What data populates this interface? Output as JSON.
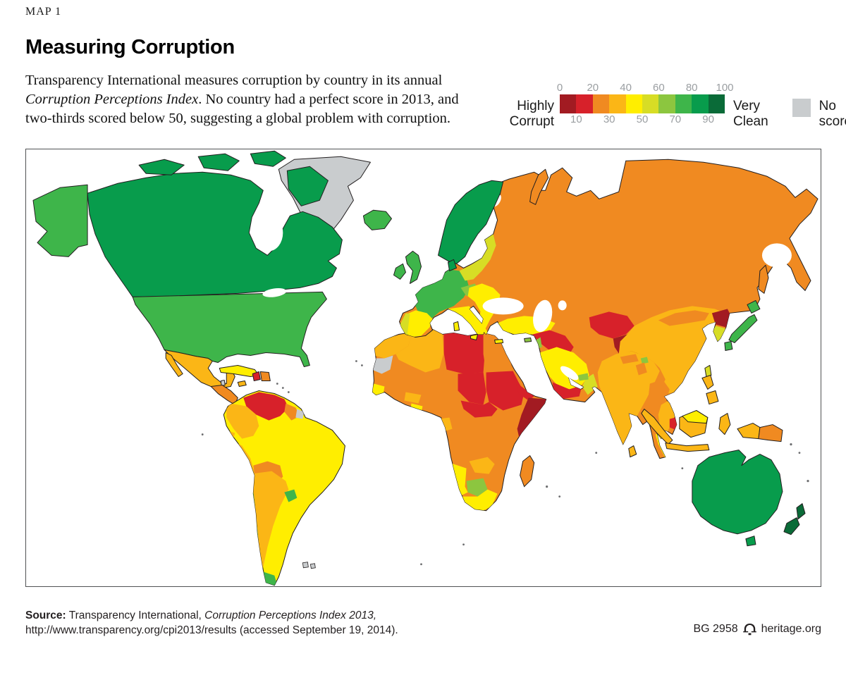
{
  "header": {
    "kicker": "MAP 1",
    "title": "Measuring Corruption",
    "desc_before": "Transparency International measures corruption by country in its annual ",
    "desc_italic": "Corruption Perceptions Index",
    "desc_after": ". No country had a perfect score in 2013, and two-thirds scored below 50, suggesting a global problem with corruption."
  },
  "legend": {
    "left_label_line1": "Highly",
    "left_label_line2": "Corrupt",
    "right_label_line1": "Very",
    "right_label_line2": "Clean",
    "no_score_label_line1": "No",
    "no_score_label_line2": "score",
    "ticks_top": [
      "0",
      "20",
      "40",
      "60",
      "80",
      "100"
    ],
    "ticks_bottom": [
      "10",
      "30",
      "50",
      "70",
      "90"
    ]
  },
  "footer": {
    "source_label": "Source:",
    "source_text": " Transparency International, ",
    "source_italic": "Corruption Perceptions Index 2013,",
    "source_line2": "http://www.transparency.org/cpi2013/results (accessed September 19, 2014).",
    "report_id": "BG 2958",
    "site": "heritage.org"
  },
  "map": {
    "band_order": [
      "0-10",
      "10-20",
      "20-30",
      "30-40",
      "40-50",
      "50-60",
      "60-70",
      "70-80",
      "80-90",
      "90-100"
    ],
    "bands": {
      "0-10": "#A21B22",
      "10-20": "#D7212A",
      "20-30": "#F08A21",
      "30-40": "#FBB616",
      "40-50": "#FFEE00",
      "50-60": "#D7DD25",
      "60-70": "#8CC63F",
      "70-80": "#3EB54A",
      "80-90": "#089C4C",
      "90-100": "#0A6B38",
      "none": "#C9CCCE"
    },
    "regions": {
      "greenland": "none",
      "canada": "80-90",
      "alaska": "70-80",
      "usa": "70-80",
      "mexico": "30-40",
      "belize": "none",
      "central-america-north": "20-30",
      "central-america-south": "40-50",
      "cuba": "40-50",
      "jamaica": "30-40",
      "haiti": "10-20",
      "dominican-republic": "20-30",
      "brazil": "40-50",
      "venezuela": "10-20",
      "colombia": "30-40",
      "ecuador": "30-40",
      "peru": "30-40",
      "guyana": "20-30",
      "suriname": "none",
      "bolivia": "20-30",
      "paraguay": "20-30",
      "argentina": "30-40",
      "uruguay": "70-80",
      "chile": "70-80",
      "patagonia-tip": "70-80",
      "falkland-islands": "none",
      "iceland": "70-80",
      "united-kingdom": "70-80",
      "ireland": "70-80",
      "scandinavia": "80-90",
      "denmark": "80-90",
      "western-europe": "70-80",
      "austria-czech": "60-70",
      "poland-baltics": "50-60",
      "spain": "40-50",
      "portugal": "50-60",
      "italy": "40-50",
      "balkans": "40-50",
      "cyprus": "60-70",
      "turkey": "40-50",
      "syria-iraq": "10-20",
      "israel": "60-70",
      "saudi-arabia": "40-50",
      "yemen": "10-20",
      "oman": "50-60",
      "uae": "60-70",
      "russia-and-central-asia": "20-30",
      "turkmenistan-uzbekistan": "10-20",
      "afghanistan": "0-10",
      "india": "30-40",
      "nepal": "20-30",
      "bhutan": "60-70",
      "bangladesh": "20-30",
      "sri-lanka": "30-40",
      "china": "30-40",
      "mongolia": "20-30",
      "north-korea": "0-10",
      "south-korea": "50-60",
      "japan": "70-80",
      "taiwan": "50-60",
      "myanmar": "20-30",
      "thailand": "30-40",
      "cambodia": "10-20",
      "vietnam": "20-30",
      "malaysia": "40-50",
      "indonesia": "30-40",
      "philippines": "30-40",
      "papua-new-guinea": "20-30",
      "australia": "80-90",
      "new-zealand": "90-100",
      "central-africa": "20-30",
      "morocco": "30-40",
      "western-sahara": "none",
      "algeria": "30-40",
      "libya": "10-20",
      "egypt": "20-30",
      "chad": "10-20",
      "sudan": "10-20",
      "eritrea": "10-20",
      "somalia": "0-10",
      "senegal": "40-50",
      "guinea-bissau": "10-20",
      "ghana": "40-50",
      "burkina-faso": "30-40",
      "gabon": "30-40",
      "central-african-republic": "10-20",
      "zambia": "30-40",
      "botswana": "60-70",
      "namibia": "40-50",
      "south-africa": "40-50",
      "madagascar": "20-30"
    }
  }
}
